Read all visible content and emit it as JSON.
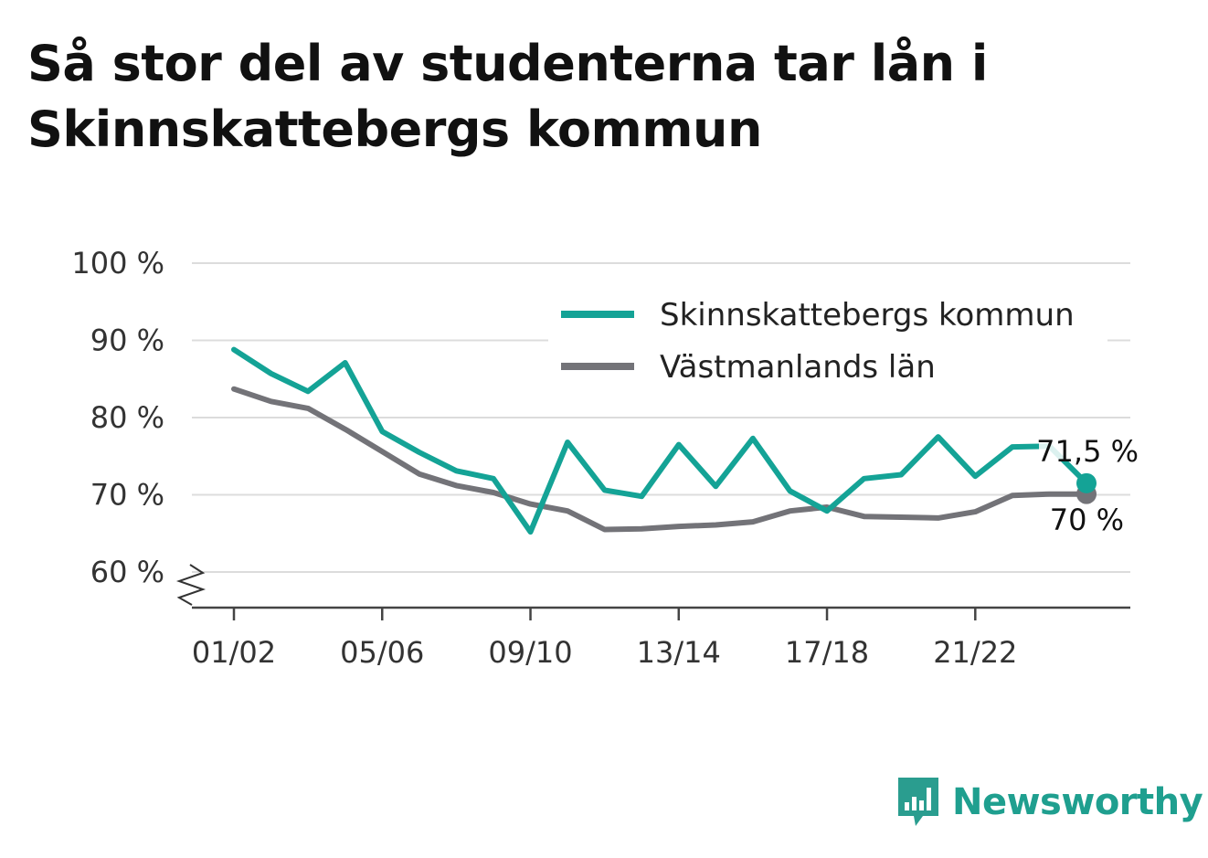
{
  "title": "Så stor del av studenterna tar lån i Skinnskattebergs kommun",
  "brand": {
    "name": "Newsworthy",
    "icon": "bar-chart-speech-bubble-icon",
    "color": "#2a9d8f"
  },
  "chart_data": {
    "type": "line",
    "x": [
      "01/02",
      "02/03",
      "03/04",
      "04/05",
      "05/06",
      "06/07",
      "07/08",
      "08/09",
      "09/10",
      "10/11",
      "11/12",
      "12/13",
      "13/14",
      "14/15",
      "15/16",
      "16/17",
      "17/18",
      "18/19",
      "19/20",
      "20/21",
      "21/22",
      "22/23",
      "23/24",
      "24/25"
    ],
    "x_tick_labels": [
      "01/02",
      "05/06",
      "09/10",
      "13/14",
      "17/18",
      "21/22"
    ],
    "y_tick_values": [
      60,
      70,
      80,
      90,
      100
    ],
    "y_tick_labels": [
      "60 %",
      "70 %",
      "80 %",
      "90 %",
      "100 %"
    ],
    "ylim": [
      55,
      100
    ],
    "y_axis_break": true,
    "grid": true,
    "legend_position": "top-right",
    "series": [
      {
        "name": "Skinnskattebergs kommun",
        "color": "#14a396",
        "values": [
          88.8,
          85.7,
          83.4,
          87.1,
          78.2,
          75.5,
          73.1,
          72.1,
          65.2,
          76.8,
          70.6,
          69.8,
          76.5,
          71.1,
          77.3,
          70.5,
          67.9,
          72.1,
          72.6,
          77.5,
          72.4,
          76.2,
          76.3,
          71.5
        ],
        "end_label": "71,5 %"
      },
      {
        "name": "Västmanlands län",
        "color": "#737378",
        "values": [
          83.7,
          82.1,
          81.2,
          78.5,
          75.6,
          72.7,
          71.2,
          70.3,
          68.8,
          67.9,
          65.5,
          65.6,
          65.9,
          66.1,
          66.5,
          67.9,
          68.4,
          67.2,
          67.1,
          67.0,
          67.8,
          69.9,
          70.1,
          70.1
        ],
        "end_label": "70 %"
      }
    ]
  }
}
